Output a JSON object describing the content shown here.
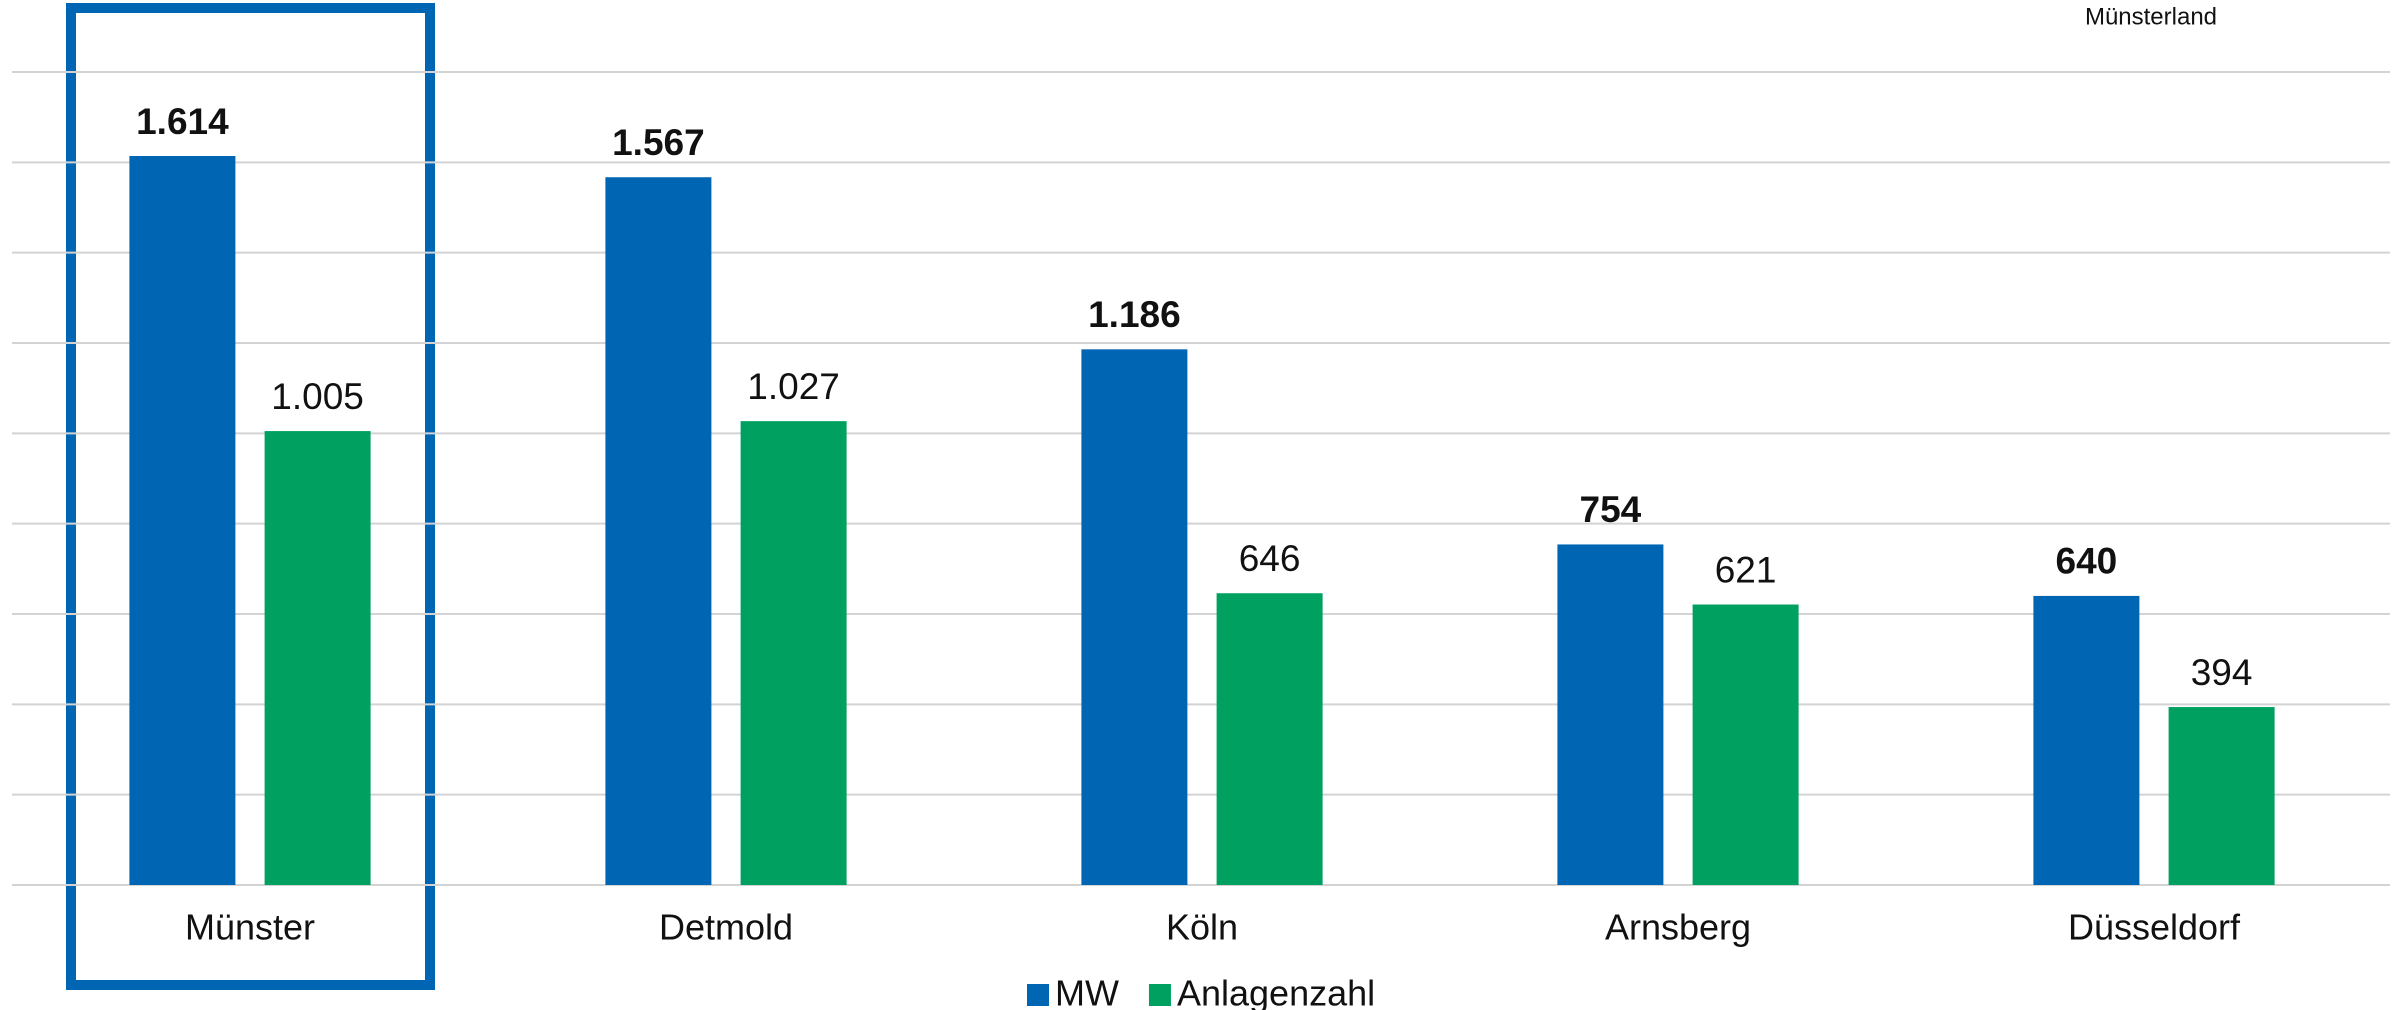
{
  "chart_data": {
    "type": "bar",
    "annotation": "Münsterland",
    "categories": [
      "Münster",
      "Detmold",
      "Köln",
      "Arnsberg",
      "Düsseldorf"
    ],
    "series": [
      {
        "name": "MW",
        "color": "#0066b3",
        "values": [
          1614,
          1567,
          1186,
          754,
          640
        ],
        "value_labels": [
          "1.614",
          "1.567",
          "1.186",
          "754",
          "640"
        ]
      },
      {
        "name": "Anlagenzahl",
        "color": "#00a160",
        "values": [
          1005,
          1027,
          646,
          621,
          394
        ],
        "value_labels": [
          "1.005",
          "1.027",
          "646",
          "621",
          "394"
        ]
      }
    ],
    "ylim": [
      0,
      1800
    ],
    "yticks": [
      0,
      200,
      400,
      600,
      800,
      1000,
      1200,
      1400,
      1600,
      1800
    ],
    "grid": true
  }
}
